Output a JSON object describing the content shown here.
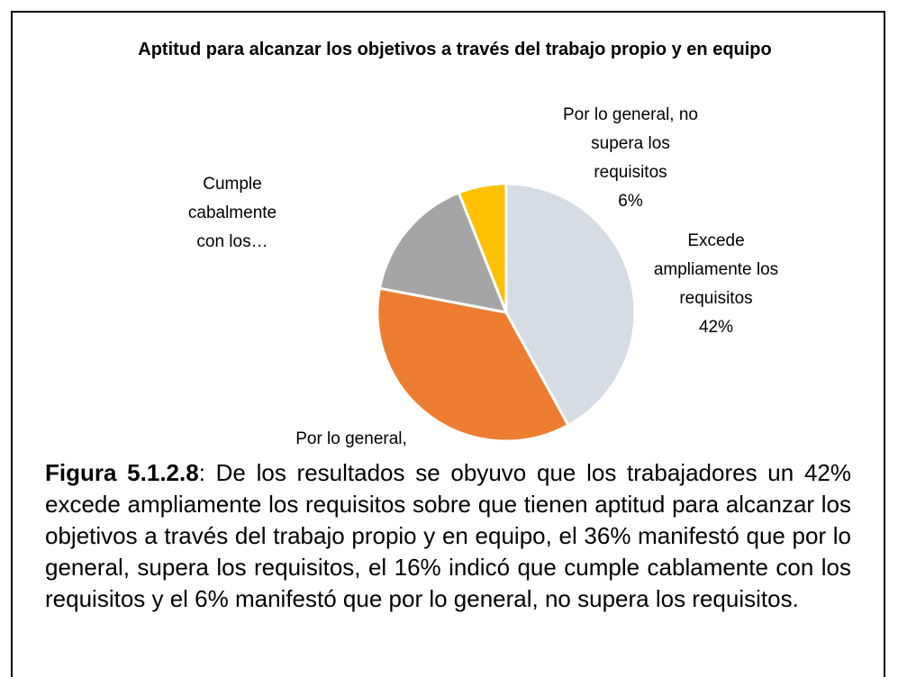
{
  "chart_data": {
    "type": "pie",
    "title": "Aptitud para alcanzar los objetivos a través del trabajo propio y en equipo",
    "categories": [
      "Excede ampliamente los requisitos",
      "Por lo general,",
      "Cumple cabalmente con los…",
      "Por lo general, no supera los requisitos"
    ],
    "values": [
      42,
      36,
      16,
      6
    ],
    "value_labels": [
      "42%",
      null,
      null,
      "6%"
    ],
    "colors": [
      "#d6dce4",
      "#ed7d31",
      "#a5a5a5",
      "#ffc000"
    ]
  },
  "caption": {
    "label": "Figura 5.1.2.8",
    "text": ": De los resultados se obyuvo que los trabajadores un 42% excede ampliamente los requisitos  sobre  que tienen aptitud para alcanzar los objetivos a través del trabajo propio y en equipo, el 36% manifestó que por lo general, supera los requisitos, el 16% indicó que cumple cablamente con los requisitos y el 6% manifestó que por lo general, no supera los requisitos."
  }
}
